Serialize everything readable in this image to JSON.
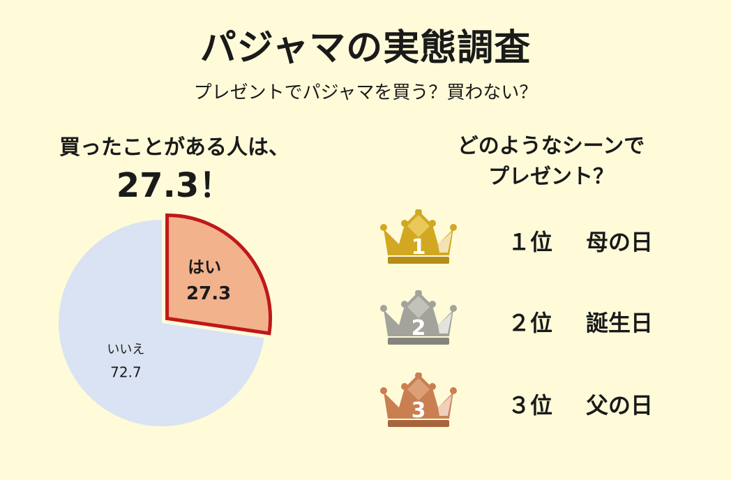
{
  "title": "パジャマの実態調査",
  "subtitle": "プレゼントでパジャマを買う？買わない？",
  "left": {
    "heading": "買ったことがある人は、",
    "highlight": "27.3！"
  },
  "right": {
    "heading_line1": "どのようなシーンで",
    "heading_line2": "プレゼント？"
  },
  "chart_data": {
    "type": "pie",
    "slices": [
      {
        "label": "はい",
        "value": 27.3,
        "color": "#f2b28c",
        "border": "#c0181a",
        "exploded": true
      },
      {
        "label": "いいえ",
        "value": 72.7,
        "color": "#dae3f3",
        "border": null,
        "exploded": false
      }
    ]
  },
  "ranking": [
    {
      "number": "1",
      "rank": "１位",
      "scene": "母の日",
      "icon": "gold-crown-icon",
      "color": "#d2a823",
      "dark": "#b58d17"
    },
    {
      "number": "2",
      "rank": "２位",
      "scene": "誕生日",
      "icon": "silver-crown-icon",
      "color": "#a3a39b",
      "dark": "#85857d"
    },
    {
      "number": "3",
      "rank": "３位",
      "scene": "父の日",
      "icon": "bronze-crown-icon",
      "color": "#c97f52",
      "dark": "#a8653d"
    }
  ]
}
